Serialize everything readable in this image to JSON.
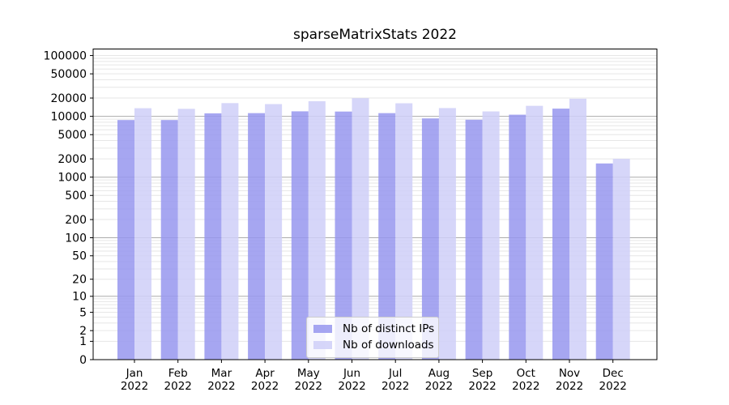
{
  "chart_data": {
    "type": "bar",
    "title": "sparseMatrixStats 2022",
    "categories": [
      "Jan",
      "Feb",
      "Mar",
      "Apr",
      "May",
      "Jun",
      "Jul",
      "Aug",
      "Sep",
      "Oct",
      "Nov",
      "Dec"
    ],
    "year_label": "2022",
    "series": [
      {
        "name": "Nb of distinct IPs",
        "color": "#9696ee",
        "values": [
          8700,
          8700,
          11200,
          11300,
          12100,
          12000,
          11300,
          9250,
          8800,
          10650,
          13400,
          1680
        ]
      },
      {
        "name": "Nb of downloads",
        "color": "#cfcff8",
        "values": [
          13600,
          13300,
          16500,
          15900,
          17700,
          19900,
          16400,
          13700,
          12050,
          14900,
          19500,
          2000
        ]
      }
    ],
    "yscale": "log10(1+x)",
    "ylim": [
      0,
      128000
    ],
    "yticks": [
      100000,
      50000,
      20000,
      10000,
      5000,
      2000,
      1000,
      500,
      200,
      100,
      50,
      20,
      10,
      5,
      2,
      1,
      0
    ],
    "grid": "horizontal log minor+major",
    "grid_minor_color": "#e6e6e6",
    "grid_major_color": "#ababab",
    "axis_color": "#000000",
    "tick_label_color": "#000000",
    "bar_opacity": 0.85,
    "legend_position": "bottom-center-inside"
  }
}
